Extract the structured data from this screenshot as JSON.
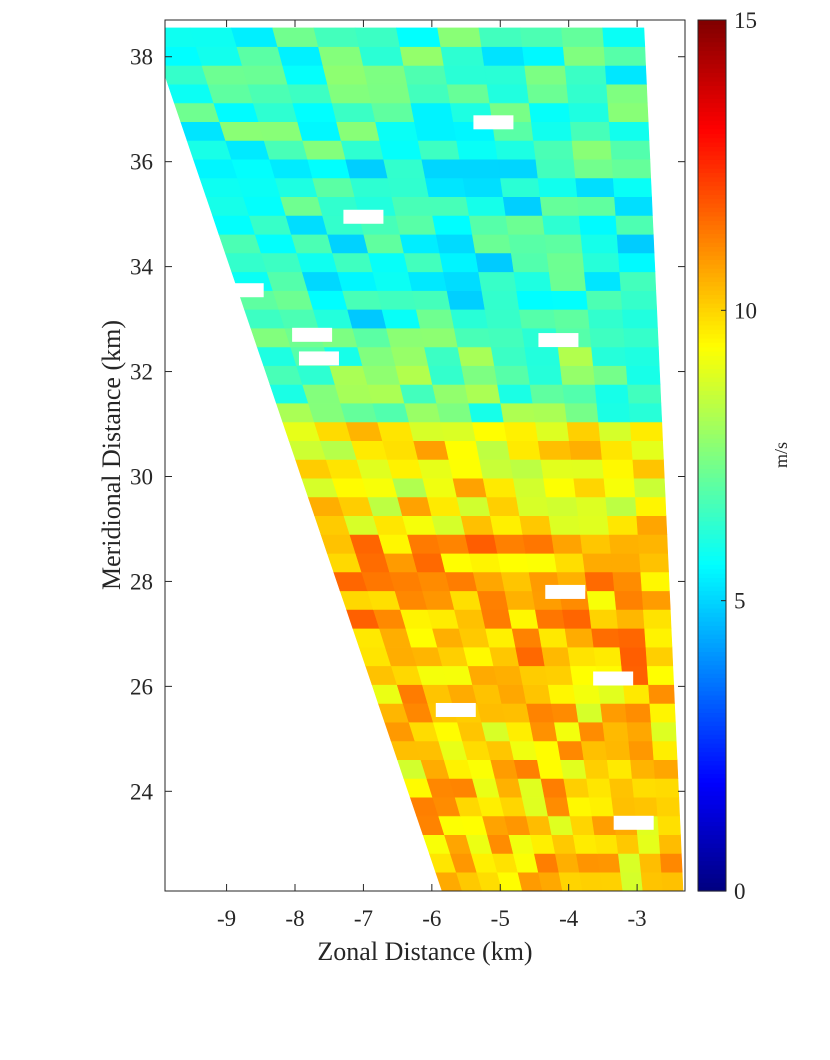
{
  "chart_data": {
    "type": "heatmap",
    "xlabel": "Zonal Distance (km)",
    "ylabel": "Meridional Distance (km)",
    "xlim": [
      -9.9,
      -2.3
    ],
    "ylim": [
      22.1,
      38.7
    ],
    "xticks": [
      -9,
      -8,
      -7,
      -6,
      -5,
      -4,
      -3
    ],
    "yticks": [
      24,
      26,
      28,
      30,
      32,
      34,
      36,
      38
    ],
    "colorbar": {
      "label": "m/s",
      "colormap": "jet",
      "range": [
        0,
        15
      ],
      "ticks": [
        0,
        5,
        10,
        15
      ]
    },
    "sector": {
      "left_edge_top": [
        -9.85,
        37.45
      ],
      "left_edge_bottom": [
        -5.85,
        22.1
      ],
      "right_edge_top": [
        -2.9,
        38.55
      ],
      "right_edge_bottom": [
        -2.35,
        22.7
      ]
    },
    "regions": [
      {
        "y_range": [
          36.0,
          38.6
        ],
        "speed": 6.5
      },
      {
        "y_range": [
          33.0,
          36.0
        ],
        "speed": 6.0
      },
      {
        "y_range": [
          31.0,
          33.0
        ],
        "speed": 7.0
      },
      {
        "y_range": [
          29.0,
          31.0
        ],
        "speed": 9.5
      },
      {
        "y_range": [
          26.0,
          29.0
        ],
        "speed": 10.5
      },
      {
        "y_range": [
          22.1,
          26.0
        ],
        "speed": 10.0
      }
    ],
    "missing_cells": [
      [
        -5.1,
        36.75
      ],
      [
        -7.0,
        34.95
      ],
      [
        -8.75,
        33.55
      ],
      [
        -7.75,
        32.7
      ],
      [
        -7.65,
        32.25
      ],
      [
        -4.15,
        32.6
      ],
      [
        -4.05,
        27.8
      ],
      [
        -3.35,
        26.15
      ],
      [
        -5.65,
        25.55
      ],
      [
        -3.05,
        23.4
      ]
    ]
  }
}
